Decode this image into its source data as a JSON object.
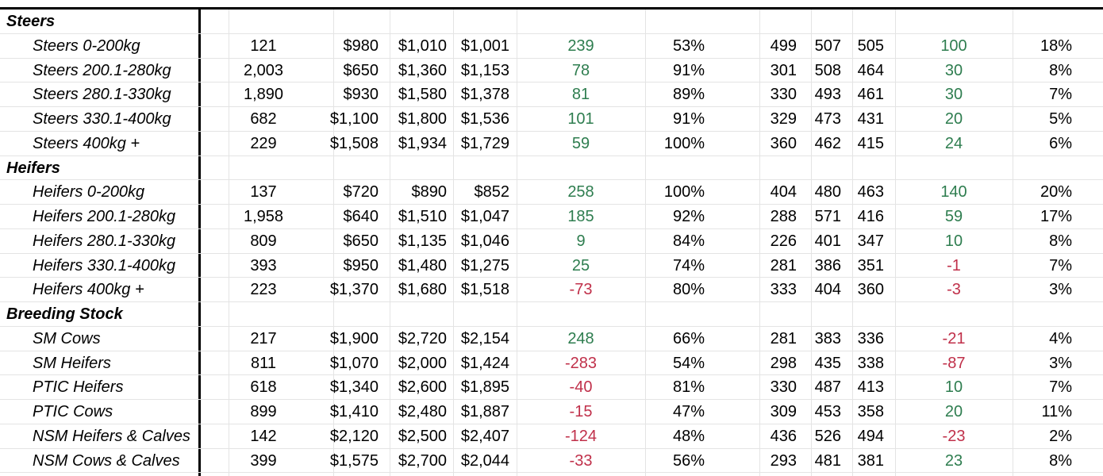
{
  "colors": {
    "positive": "#2e7d4f",
    "negative": "#c0304a"
  },
  "groups": [
    {
      "name": "Steers",
      "rows": [
        {
          "label": "Steers 0-200kg",
          "head": "121",
          "min": "$980",
          "max": "$1,010",
          "avg": "$1,001",
          "change": "239",
          "change_sign": "pos",
          "pct": "53%",
          "c_min": "499",
          "c_max": "507",
          "c_avg": "505",
          "c_change": "100",
          "c_change_sign": "pos",
          "c_pct": "18%"
        },
        {
          "label": "Steers 200.1-280kg",
          "head": "2,003",
          "min": "$650",
          "max": "$1,360",
          "avg": "$1,153",
          "change": "78",
          "change_sign": "pos",
          "pct": "91%",
          "c_min": "301",
          "c_max": "508",
          "c_avg": "464",
          "c_change": "30",
          "c_change_sign": "pos",
          "c_pct": "8%"
        },
        {
          "label": "Steers 280.1-330kg",
          "head": "1,890",
          "min": "$930",
          "max": "$1,580",
          "avg": "$1,378",
          "change": "81",
          "change_sign": "pos",
          "pct": "89%",
          "c_min": "330",
          "c_max": "493",
          "c_avg": "461",
          "c_change": "30",
          "c_change_sign": "pos",
          "c_pct": "7%"
        },
        {
          "label": "Steers 330.1-400kg",
          "head": "682",
          "min": "$1,100",
          "max": "$1,800",
          "avg": "$1,536",
          "change": "101",
          "change_sign": "pos",
          "pct": "91%",
          "c_min": "329",
          "c_max": "473",
          "c_avg": "431",
          "c_change": "20",
          "c_change_sign": "pos",
          "c_pct": "5%"
        },
        {
          "label": "Steers 400kg +",
          "head": "229",
          "min": "$1,508",
          "max": "$1,934",
          "avg": "$1,729",
          "change": "59",
          "change_sign": "pos",
          "pct": "100%",
          "c_min": "360",
          "c_max": "462",
          "c_avg": "415",
          "c_change": "24",
          "c_change_sign": "pos",
          "c_pct": "6%"
        }
      ]
    },
    {
      "name": "Heifers",
      "rows": [
        {
          "label": "Heifers 0-200kg",
          "head": "137",
          "min": "$720",
          "max": "$890",
          "avg": "$852",
          "change": "258",
          "change_sign": "pos",
          "pct": "100%",
          "c_min": "404",
          "c_max": "480",
          "c_avg": "463",
          "c_change": "140",
          "c_change_sign": "pos",
          "c_pct": "20%"
        },
        {
          "label": "Heifers 200.1-280kg",
          "head": "1,958",
          "min": "$640",
          "max": "$1,510",
          "avg": "$1,047",
          "change": "185",
          "change_sign": "pos",
          "pct": "92%",
          "c_min": "288",
          "c_max": "571",
          "c_avg": "416",
          "c_change": "59",
          "c_change_sign": "pos",
          "c_pct": "17%"
        },
        {
          "label": "Heifers 280.1-330kg",
          "head": "809",
          "min": "$650",
          "max": "$1,135",
          "avg": "$1,046",
          "change": "9",
          "change_sign": "pos",
          "pct": "84%",
          "c_min": "226",
          "c_max": "401",
          "c_avg": "347",
          "c_change": "10",
          "c_change_sign": "pos",
          "c_pct": "8%"
        },
        {
          "label": "Heifers 330.1-400kg",
          "head": "393",
          "min": "$950",
          "max": "$1,480",
          "avg": "$1,275",
          "change": "25",
          "change_sign": "pos",
          "pct": "74%",
          "c_min": "281",
          "c_max": "386",
          "c_avg": "351",
          "c_change": "-1",
          "c_change_sign": "neg",
          "c_pct": "7%"
        },
        {
          "label": "Heifers 400kg +",
          "head": "223",
          "min": "$1,370",
          "max": "$1,680",
          "avg": "$1,518",
          "change": "-73",
          "change_sign": "neg",
          "pct": "80%",
          "c_min": "333",
          "c_max": "404",
          "c_avg": "360",
          "c_change": "-3",
          "c_change_sign": "neg",
          "c_pct": "3%"
        }
      ]
    },
    {
      "name": "Breeding Stock",
      "rows": [
        {
          "label": "SM Cows",
          "head": "217",
          "min": "$1,900",
          "max": "$2,720",
          "avg": "$2,154",
          "change": "248",
          "change_sign": "pos",
          "pct": "66%",
          "c_min": "281",
          "c_max": "383",
          "c_avg": "336",
          "c_change": "-21",
          "c_change_sign": "neg",
          "c_pct": "4%"
        },
        {
          "label": "SM Heifers",
          "head": "811",
          "min": "$1,070",
          "max": "$2,000",
          "avg": "$1,424",
          "change": "-283",
          "change_sign": "neg",
          "pct": "54%",
          "c_min": "298",
          "c_max": "435",
          "c_avg": "338",
          "c_change": "-87",
          "c_change_sign": "neg",
          "c_pct": "3%"
        },
        {
          "label": "PTIC Heifers",
          "head": "618",
          "min": "$1,340",
          "max": "$2,600",
          "avg": "$1,895",
          "change": "-40",
          "change_sign": "neg",
          "pct": "81%",
          "c_min": "330",
          "c_max": "487",
          "c_avg": "413",
          "c_change": "10",
          "c_change_sign": "pos",
          "c_pct": "7%"
        },
        {
          "label": "PTIC Cows",
          "head": "899",
          "min": "$1,410",
          "max": "$2,480",
          "avg": "$1,887",
          "change": "-15",
          "change_sign": "neg",
          "pct": "47%",
          "c_min": "309",
          "c_max": "453",
          "c_avg": "358",
          "c_change": "20",
          "c_change_sign": "pos",
          "c_pct": "11%"
        },
        {
          "label": "NSM Heifers & Calves",
          "head": "142",
          "min": "$2,120",
          "max": "$2,500",
          "avg": "$2,407",
          "change": "-124",
          "change_sign": "neg",
          "pct": "48%",
          "c_min": "436",
          "c_max": "526",
          "c_avg": "494",
          "c_change": "-23",
          "c_change_sign": "neg",
          "c_pct": "2%"
        },
        {
          "label": "NSM Cows & Calves",
          "head": "399",
          "min": "$1,575",
          "max": "$2,700",
          "avg": "$2,044",
          "change": "-33",
          "change_sign": "neg",
          "pct": "56%",
          "c_min": "293",
          "c_max": "481",
          "c_avg": "381",
          "c_change": "23",
          "c_change_sign": "pos",
          "c_pct": "8%"
        }
      ]
    }
  ]
}
